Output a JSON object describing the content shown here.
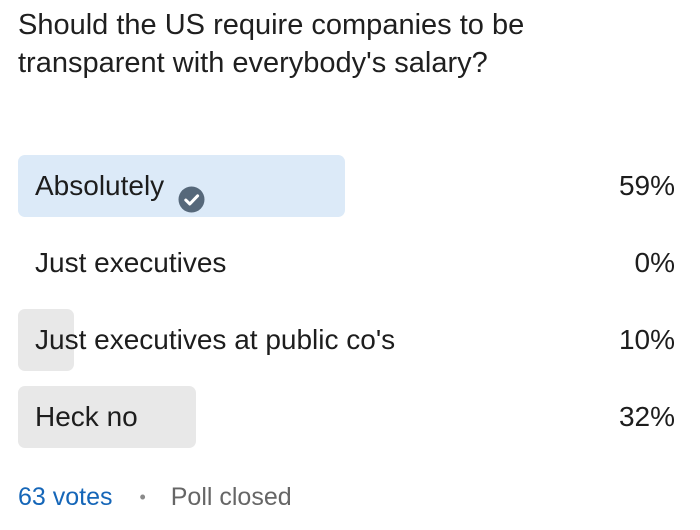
{
  "poll": {
    "question": "Should the US require companies to be transparent with everybody's salary?",
    "options": [
      {
        "label": "Absolutely",
        "percent_text": "59%",
        "percent": 59,
        "selected": true
      },
      {
        "label": "Just executives",
        "percent_text": "0%",
        "percent": 0,
        "selected": false
      },
      {
        "label": "Just executives at public co's",
        "percent_text": "10%",
        "percent": 10,
        "selected": false
      },
      {
        "label": "Heck no",
        "percent_text": "32%",
        "percent": 32,
        "selected": false
      }
    ],
    "selected_icon": "check-circle-icon",
    "footer": {
      "votes": "63 votes",
      "separator": "•",
      "status": "Poll closed"
    }
  },
  "colors": {
    "selected_fill": "#dceaf8",
    "unselected_fill": "#e8e8e8",
    "votes_link": "#1566b8",
    "check_icon": "#56687a"
  }
}
